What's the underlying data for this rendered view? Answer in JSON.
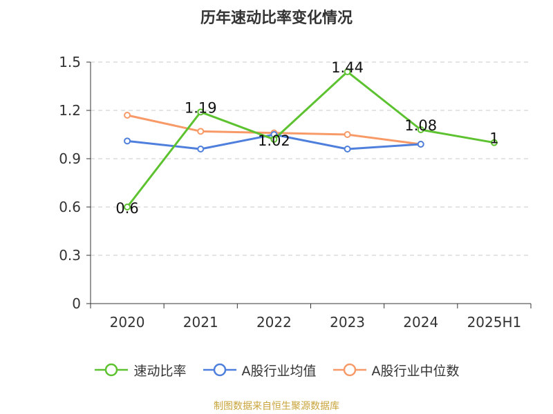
{
  "chart_data": {
    "type": "line",
    "title": "历年速动比率变化情况",
    "categories": [
      "2020",
      "2021",
      "2022",
      "2023",
      "2024",
      "2025H1"
    ],
    "y_ticks": [
      "0",
      "0.3",
      "0.6",
      "0.9",
      "1.2",
      "1.5"
    ],
    "ylim": [
      0,
      1.5
    ],
    "grid": true,
    "legend_position": "bottom",
    "series": [
      {
        "name": "速动比率",
        "color": "#5dc230",
        "values": [
          0.6,
          1.19,
          1.02,
          1.44,
          1.08,
          1
        ],
        "data_labels": [
          "0.6",
          "1.19",
          "1.02",
          "1.44",
          "1.08",
          "1"
        ]
      },
      {
        "name": "A股行业均值",
        "color": "#4f7fdc",
        "values": [
          1.01,
          0.96,
          1.05,
          0.96,
          0.99,
          null
        ]
      },
      {
        "name": "A股行业中位数",
        "color": "#f79a68",
        "values": [
          1.17,
          1.07,
          1.06,
          1.05,
          0.99,
          null
        ]
      }
    ]
  },
  "source": "制图数据来自恒生聚源数据库"
}
